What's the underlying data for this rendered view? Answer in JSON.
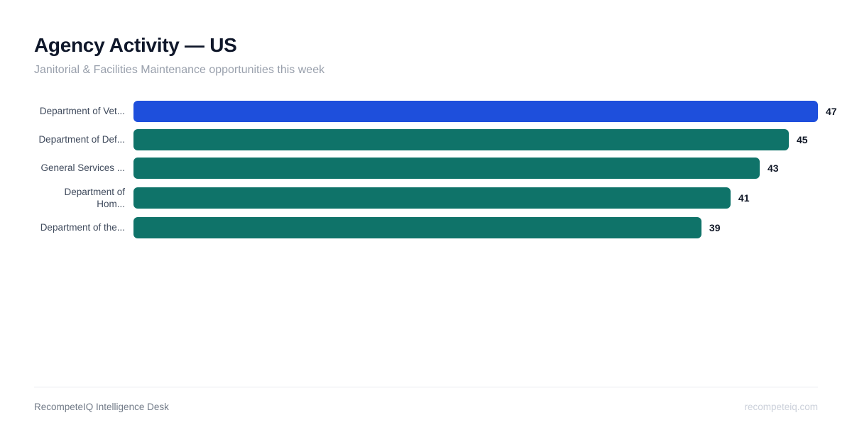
{
  "header": {
    "title": "Agency Activity — US",
    "subtitle": "Janitorial & Facilities Maintenance opportunities this week"
  },
  "chart_data": {
    "type": "bar",
    "orientation": "horizontal",
    "title": "Agency Activity — US",
    "subtitle": "Janitorial & Facilities Maintenance opportunities this week",
    "categories": [
      "Department of Vet...",
      "Department of Def...",
      "General Services ...",
      "Department of\nHom...",
      "Department of the..."
    ],
    "values": [
      47,
      45,
      43,
      41,
      39
    ],
    "bar_colors": [
      "#1e4fdc",
      "#0f7369",
      "#0f7369",
      "#0f7369",
      "#0f7369"
    ],
    "xlim": [
      0,
      47
    ],
    "xlabel": "",
    "ylabel": "",
    "grid": false,
    "legend": false,
    "value_labels_shown": true
  },
  "colors": {
    "highlight_bar": "#1e4fdc",
    "default_bar": "#0f7369",
    "title_text": "#0f172a",
    "subtitle_text": "#9aa1ad",
    "category_label_text": "#3f4a5c",
    "value_label_text": "#111827",
    "divider": "#e8eaee",
    "footer_left_text": "#717a87",
    "footer_right_text": "#cbd0da",
    "background": "#ffffff"
  },
  "footer": {
    "left": "RecompeteIQ Intelligence Desk",
    "right": "recompeteiq.com"
  }
}
